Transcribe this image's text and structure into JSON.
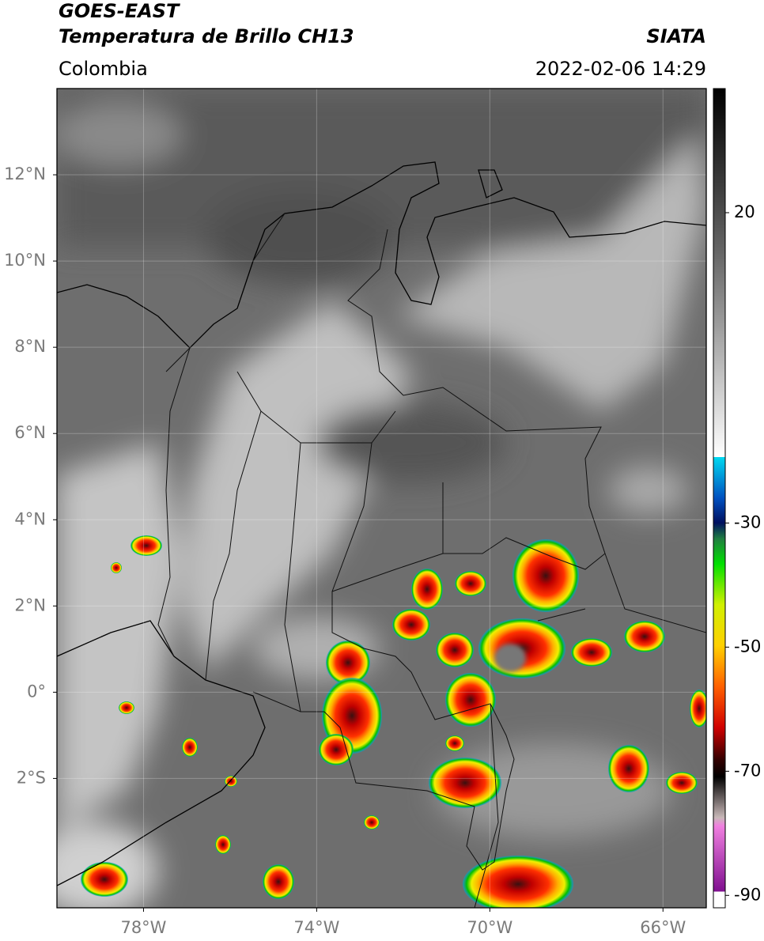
{
  "header": {
    "title": "GOES-EAST",
    "subtitle": "Temperatura de Brillo CH13",
    "source": "SIATA",
    "region": "Colombia",
    "datetime": "2022-02-06 14:29"
  },
  "map": {
    "xlim": [
      -80,
      -65
    ],
    "ylim": [
      -5,
      14
    ],
    "xticks": [
      {
        "value": -78,
        "label": "78°W"
      },
      {
        "value": -74,
        "label": "74°W"
      },
      {
        "value": -70,
        "label": "70°W"
      },
      {
        "value": -66,
        "label": "66°W"
      }
    ],
    "yticks": [
      {
        "value": 12,
        "label": "12°N"
      },
      {
        "value": 10,
        "label": "10°N"
      },
      {
        "value": 8,
        "label": "8°N"
      },
      {
        "value": 6,
        "label": "6°N"
      },
      {
        "value": 4,
        "label": "4°N"
      },
      {
        "value": 2,
        "label": "2°N"
      },
      {
        "value": 0,
        "label": "0°"
      },
      {
        "value": -2,
        "label": "2°S"
      }
    ],
    "grid": true
  },
  "colorbar": {
    "lim": [
      -92,
      40
    ],
    "ticks": [
      20,
      -30,
      -50,
      -70,
      -90
    ]
  }
}
